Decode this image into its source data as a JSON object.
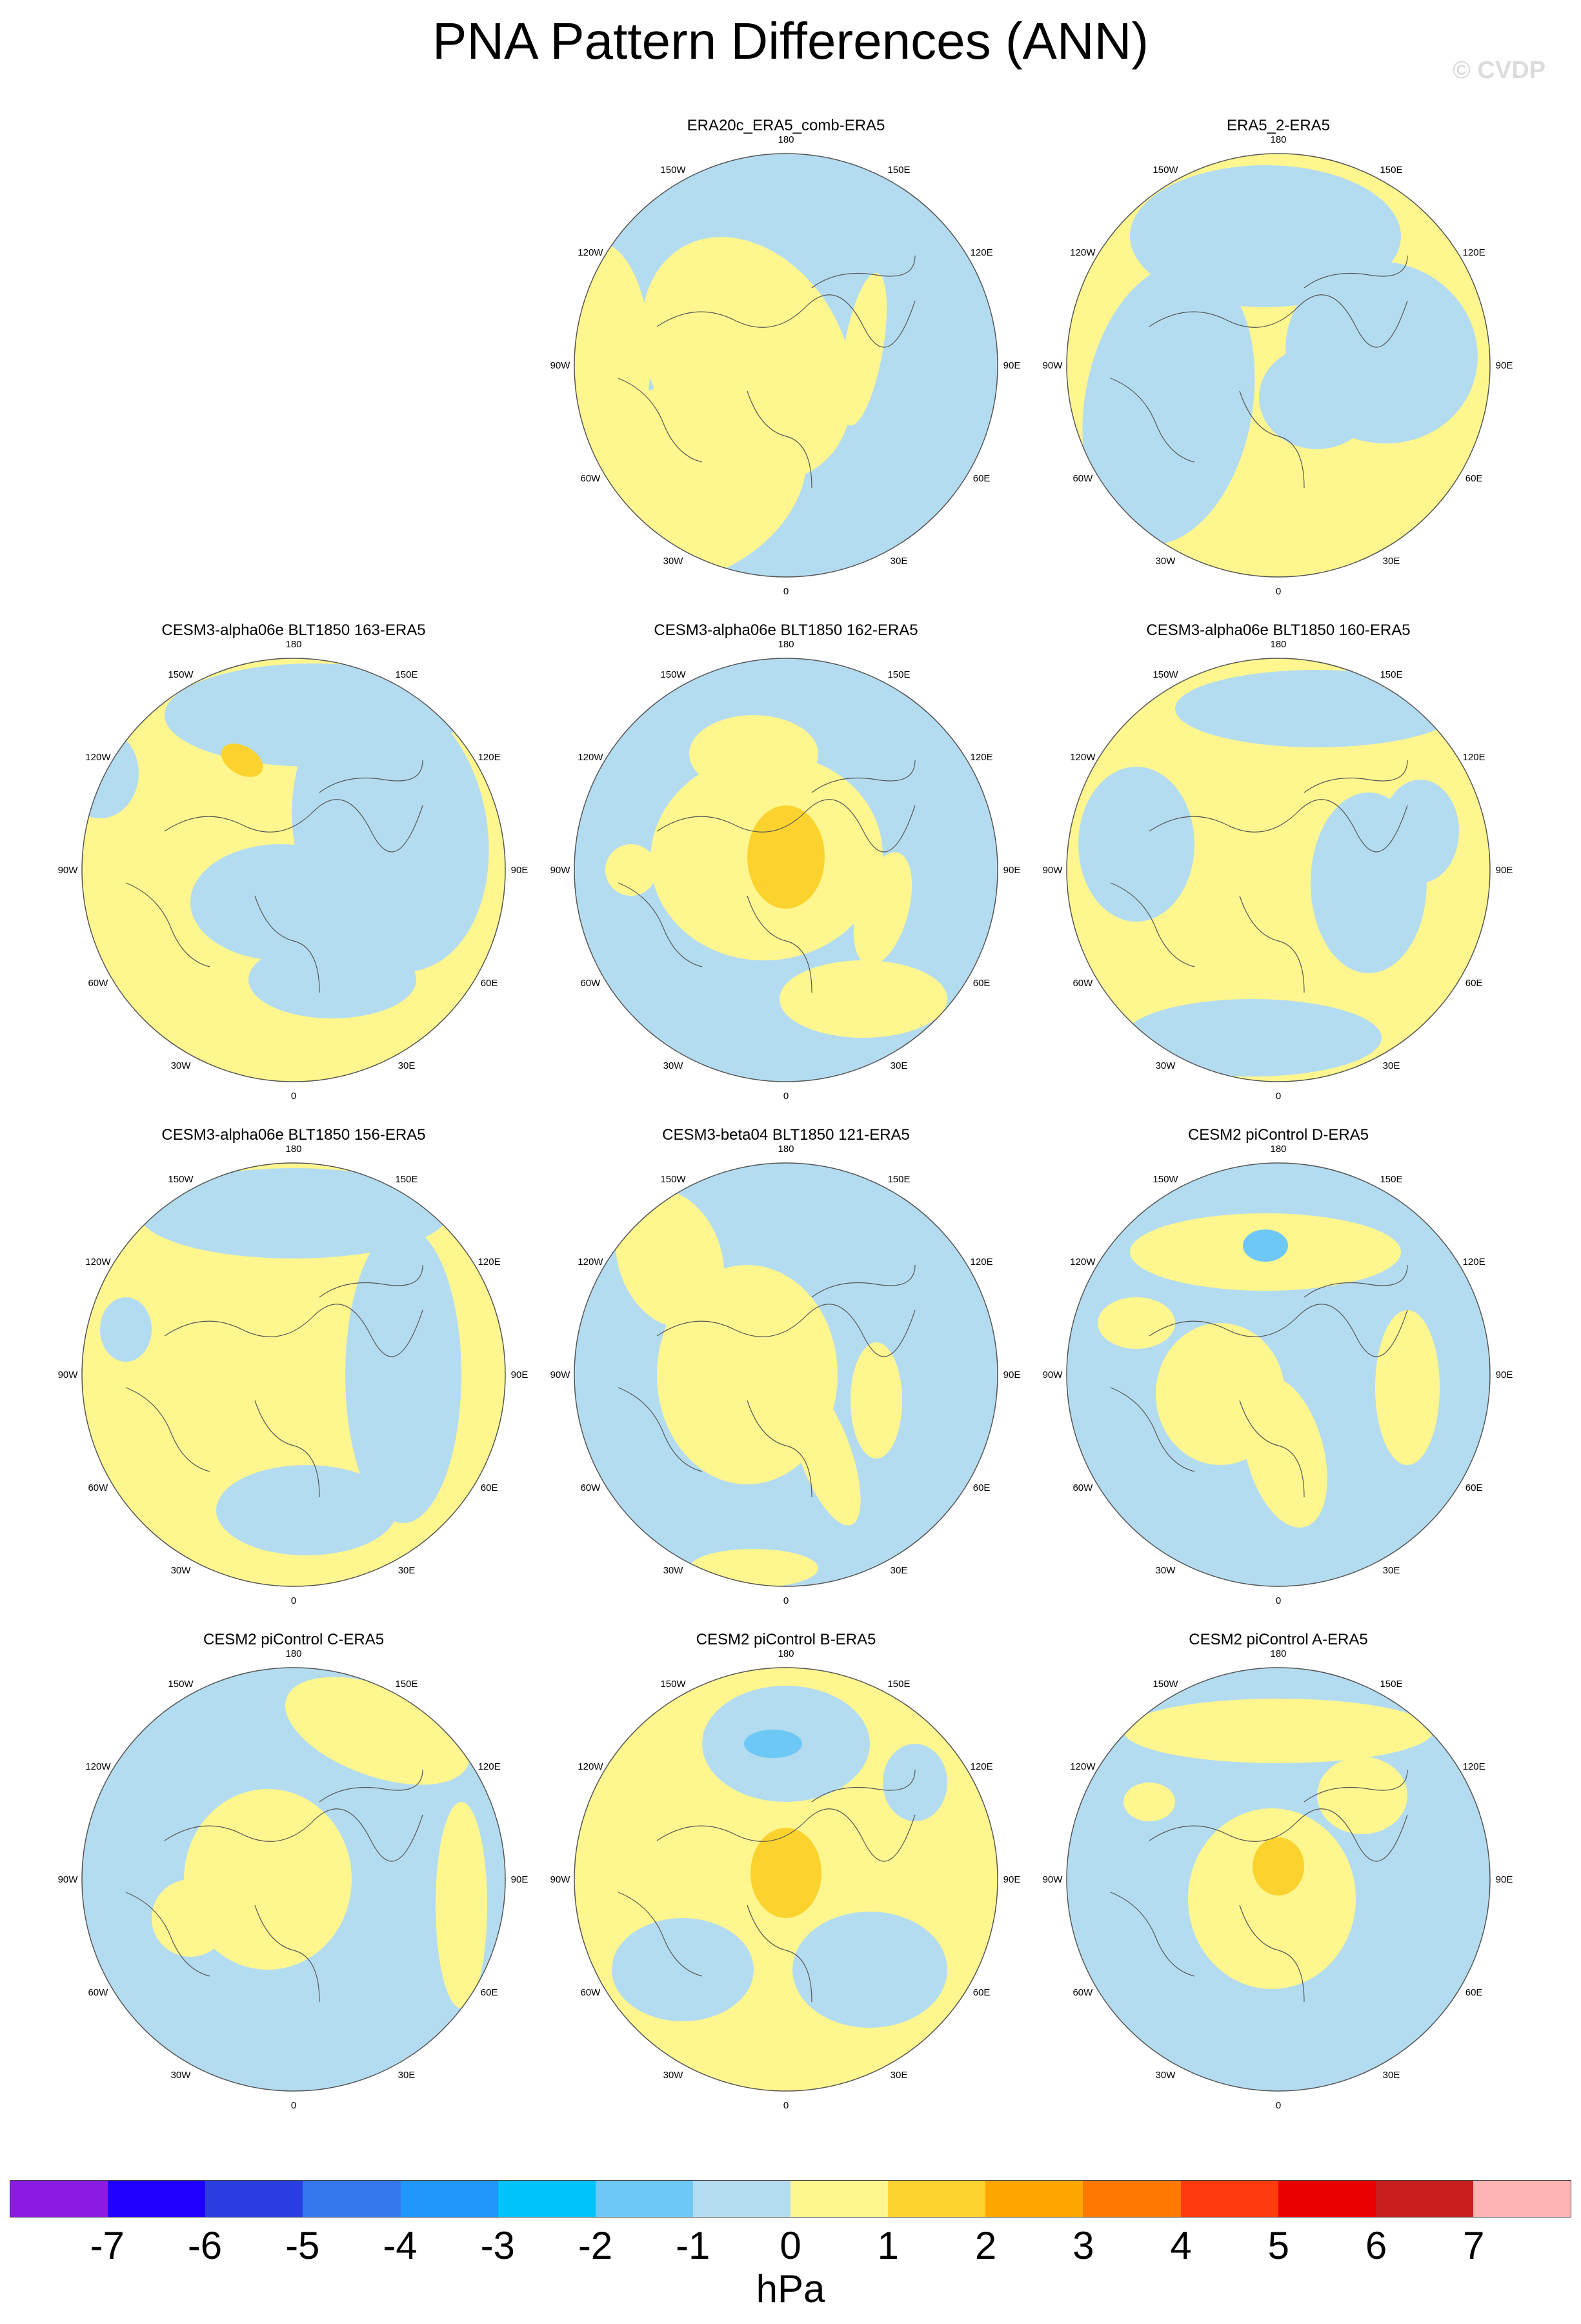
{
  "title": "PNA Pattern Differences (ANN)",
  "watermark": "© CVDP",
  "lon_labels": [
    "180",
    "150E",
    "120E",
    "90E",
    "60E",
    "30E",
    "0",
    "30W",
    "60W",
    "90W",
    "120W",
    "150W"
  ],
  "colors": {
    "pos1": "#FFF68F",
    "pos2": "#FCD32E",
    "neg1": "#B4DCF0",
    "neg2": "#6EC8F5",
    "neg3": "#4FA0E8"
  },
  "panels": [
    {
      "id": "era20c",
      "title": "ERA20c_ERA5_comb-ERA5",
      "row": 0,
      "col": 1,
      "base": "neg1",
      "blobs": [
        [
          "pos1",
          -160,
          180,
          200,
          150,
          -25
        ],
        [
          "pos1",
          -60,
          -10,
          150,
          200,
          -30
        ],
        [
          "pos1",
          -290,
          -10,
          80,
          180,
          0
        ],
        [
          "pos1",
          120,
          -25,
          30,
          120,
          10
        ],
        [
          "pos1",
          -200,
          -40,
          70,
          30,
          -20
        ]
      ]
    },
    {
      "id": "era5_2",
      "title": "ERA5_2-ERA5",
      "row": 0,
      "col": 2,
      "base": "pos1",
      "blobs": [
        [
          "neg1",
          -20,
          -200,
          210,
          110,
          0
        ],
        [
          "neg1",
          -170,
          60,
          130,
          220,
          10
        ],
        [
          "neg1",
          160,
          -20,
          150,
          140,
          20
        ],
        [
          "neg1",
          60,
          50,
          90,
          80,
          0
        ]
      ]
    },
    {
      "id": "a163",
      "title": "CESM3-alpha06e BLT1850 163-ERA5",
      "row": 1,
      "col": 0,
      "base": "pos1",
      "blobs": [
        [
          "neg1",
          150,
          -60,
          150,
          220,
          -10
        ],
        [
          "neg1",
          -20,
          50,
          140,
          90,
          0
        ],
        [
          "neg1",
          30,
          -240,
          230,
          80,
          0
        ],
        [
          "neg1",
          60,
          170,
          130,
          60,
          0
        ],
        [
          "neg1",
          -300,
          -150,
          60,
          70,
          0
        ],
        [
          "pos2",
          -80,
          -170,
          35,
          22,
          30
        ]
      ]
    },
    {
      "id": "a162",
      "title": "CESM3-alpha06e BLT1850 162-ERA5",
      "row": 1,
      "col": 1,
      "base": "neg1",
      "blobs": [
        [
          "pos1",
          -30,
          -20,
          180,
          160,
          -5
        ],
        [
          "pos1",
          -50,
          -180,
          100,
          60,
          0
        ],
        [
          "pos1",
          150,
          60,
          40,
          90,
          15
        ],
        [
          "pos1",
          120,
          200,
          130,
          60,
          0
        ],
        [
          "pos1",
          -240,
          0,
          40,
          40,
          0
        ],
        [
          "pos2",
          0,
          -20,
          60,
          80,
          0
        ]
      ]
    },
    {
      "id": "a160",
      "title": "CESM3-alpha06e BLT1850 160-ERA5",
      "row": 1,
      "col": 2,
      "base": "pos1",
      "blobs": [
        [
          "neg1",
          60,
          -250,
          220,
          60,
          0
        ],
        [
          "neg1",
          -220,
          -40,
          90,
          120,
          0
        ],
        [
          "neg1",
          140,
          20,
          90,
          140,
          0
        ],
        [
          "neg1",
          -40,
          260,
          200,
          60,
          0
        ],
        [
          "neg1",
          220,
          -60,
          60,
          80,
          0
        ]
      ]
    },
    {
      "id": "a156",
      "title": "CESM3-alpha06e BLT1850 156-ERA5",
      "row": 2,
      "col": 0,
      "base": "pos1",
      "blobs": [
        [
          "neg1",
          0,
          -250,
          240,
          70,
          0
        ],
        [
          "neg1",
          170,
          0,
          90,
          230,
          0
        ],
        [
          "neg1",
          20,
          210,
          140,
          70,
          0
        ],
        [
          "neg1",
          -260,
          -70,
          40,
          50,
          0
        ]
      ]
    },
    {
      "id": "b121",
      "title": "CESM3-beta04 BLT1850 121-ERA5",
      "row": 2,
      "col": 1,
      "base": "neg1",
      "blobs": [
        [
          "pos1",
          -60,
          0,
          140,
          170,
          0
        ],
        [
          "pos1",
          -180,
          -180,
          80,
          110,
          -20
        ],
        [
          "pos1",
          60,
          120,
          40,
          120,
          -20
        ],
        [
          "pos1",
          140,
          40,
          40,
          90,
          0
        ],
        [
          "pos1",
          -50,
          300,
          100,
          30,
          0
        ]
      ]
    },
    {
      "id": "picD",
      "title": "CESM2 piControl D-ERA5",
      "row": 2,
      "col": 2,
      "base": "neg1",
      "blobs": [
        [
          "pos1",
          -20,
          -190,
          210,
          60,
          0
        ],
        [
          "pos1",
          -90,
          30,
          100,
          110,
          0
        ],
        [
          "pos1",
          10,
          120,
          60,
          120,
          -15
        ],
        [
          "pos1",
          200,
          20,
          50,
          120,
          0
        ],
        [
          "pos1",
          -220,
          -80,
          60,
          40,
          0
        ],
        [
          "neg2",
          -20,
          -200,
          35,
          25,
          0
        ]
      ]
    },
    {
      "id": "picC",
      "title": "CESM2 piControl C-ERA5",
      "row": 3,
      "col": 0,
      "base": "neg1",
      "blobs": [
        [
          "pos1",
          -40,
          0,
          130,
          140,
          0
        ],
        [
          "pos1",
          130,
          -230,
          150,
          70,
          20
        ],
        [
          "pos1",
          260,
          40,
          40,
          160,
          0
        ],
        [
          "pos1",
          -160,
          60,
          60,
          60,
          0
        ]
      ]
    },
    {
      "id": "picB",
      "title": "CESM2 piControl B-ERA5",
      "row": 3,
      "col": 1,
      "base": "pos1",
      "blobs": [
        [
          "neg1",
          0,
          -210,
          130,
          90,
          0
        ],
        [
          "neg1",
          -160,
          140,
          110,
          80,
          0
        ],
        [
          "neg1",
          130,
          140,
          120,
          90,
          0
        ],
        [
          "neg1",
          200,
          -150,
          50,
          60,
          0
        ],
        [
          "neg2",
          -20,
          -210,
          45,
          22,
          0
        ],
        [
          "pos2",
          0,
          -10,
          55,
          70,
          0
        ]
      ]
    },
    {
      "id": "picA",
      "title": "CESM2 piControl A-ERA5",
      "row": 3,
      "col": 2,
      "base": "neg1",
      "blobs": [
        [
          "pos1",
          0,
          -230,
          240,
          50,
          0
        ],
        [
          "pos1",
          -10,
          30,
          130,
          140,
          0
        ],
        [
          "pos1",
          130,
          -130,
          70,
          60,
          0
        ],
        [
          "pos1",
          -200,
          -120,
          40,
          30,
          0
        ],
        [
          "pos2",
          0,
          -20,
          40,
          45,
          0
        ]
      ]
    }
  ],
  "colorbar": {
    "colors": [
      "#8B1AE3",
      "#1E00FF",
      "#2A3FE3",
      "#3578EE",
      "#1E96FA",
      "#00C3FA",
      "#6EC8F5",
      "#B4DCF0",
      "#FFF68F",
      "#FCD32E",
      "#FFA700",
      "#FF7800",
      "#FF3A0E",
      "#EB0000",
      "#C81E1E",
      "#FFB4B4"
    ],
    "ticks": [
      "-7",
      "-6",
      "-5",
      "-4",
      "-3",
      "-2",
      "-1",
      "0",
      "1",
      "2",
      "3",
      "4",
      "5",
      "6",
      "7"
    ],
    "units": "hPa"
  }
}
